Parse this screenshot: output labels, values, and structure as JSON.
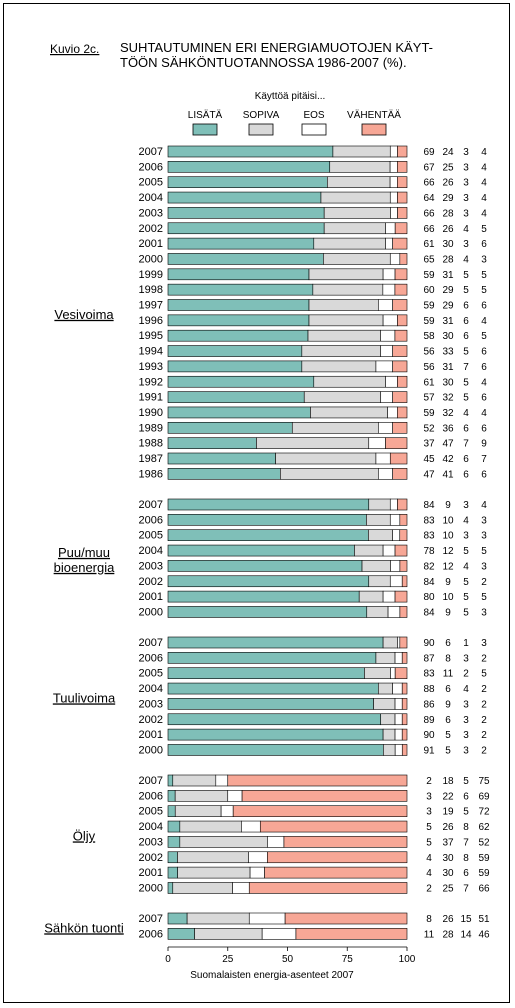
{
  "figure": {
    "label": "Kuvio 2c.",
    "title_line1": "SUHTAUTUMINEN ERI ENERGIAMUOTOJEN KÄYT-",
    "title_line2": "TÖÖN SÄHKÖNTUOTANNOSSA 1986-2007 (%).",
    "footer": "Suomalaisten energia-asenteet 2007"
  },
  "chart_data": {
    "type": "bar",
    "orientation": "horizontal",
    "stacked": true,
    "legend_title": "Käyttöä pitäisi...",
    "legend_position": "top",
    "xlim": [
      0,
      100
    ],
    "xticks": [
      0,
      25,
      50,
      75,
      100
    ],
    "series": [
      {
        "name": "LISÄTÄ",
        "color": "#7fbfb8"
      },
      {
        "name": "SOPIVA",
        "color": "#d9d9d9"
      },
      {
        "name": "EOS",
        "color": "#ffffff"
      },
      {
        "name": "VÄHENTÄÄ",
        "color": "#f7a796"
      }
    ],
    "groups": [
      {
        "name": "Vesivoima",
        "rows": [
          {
            "year": "2007",
            "values": [
              69,
              24,
              3,
              4
            ]
          },
          {
            "year": "2006",
            "values": [
              67,
              25,
              3,
              4
            ]
          },
          {
            "year": "2005",
            "values": [
              66,
              26,
              3,
              4
            ]
          },
          {
            "year": "2004",
            "values": [
              64,
              29,
              3,
              4
            ]
          },
          {
            "year": "2003",
            "values": [
              66,
              28,
              3,
              4
            ]
          },
          {
            "year": "2002",
            "values": [
              66,
              26,
              4,
              5
            ]
          },
          {
            "year": "2001",
            "values": [
              61,
              30,
              3,
              6
            ]
          },
          {
            "year": "2000",
            "values": [
              65,
              28,
              4,
              3
            ]
          },
          {
            "year": "1999",
            "values": [
              59,
              31,
              5,
              5
            ]
          },
          {
            "year": "1998",
            "values": [
              60,
              29,
              5,
              5
            ]
          },
          {
            "year": "1997",
            "values": [
              59,
              29,
              6,
              6
            ]
          },
          {
            "year": "1996",
            "values": [
              59,
              31,
              6,
              4
            ]
          },
          {
            "year": "1995",
            "values": [
              58,
              30,
              6,
              5
            ]
          },
          {
            "year": "1994",
            "values": [
              56,
              33,
              5,
              6
            ]
          },
          {
            "year": "1993",
            "values": [
              56,
              31,
              7,
              6
            ]
          },
          {
            "year": "1992",
            "values": [
              61,
              30,
              5,
              4
            ]
          },
          {
            "year": "1991",
            "values": [
              57,
              32,
              5,
              6
            ]
          },
          {
            "year": "1990",
            "values": [
              59,
              32,
              4,
              4
            ]
          },
          {
            "year": "1989",
            "values": [
              52,
              36,
              6,
              6
            ]
          },
          {
            "year": "1988",
            "values": [
              37,
              47,
              7,
              9
            ]
          },
          {
            "year": "1987",
            "values": [
              45,
              42,
              6,
              7
            ]
          },
          {
            "year": "1986",
            "values": [
              47,
              41,
              6,
              6
            ]
          }
        ]
      },
      {
        "name": "Puu/muu bioenergia",
        "name_lines": [
          "Puu/muu",
          "bioenergia"
        ],
        "rows": [
          {
            "year": "2007",
            "values": [
              84,
              9,
              3,
              4
            ]
          },
          {
            "year": "2006",
            "values": [
              83,
              10,
              4,
              3
            ]
          },
          {
            "year": "2005",
            "values": [
              83,
              10,
              3,
              3
            ]
          },
          {
            "year": "2004",
            "values": [
              78,
              12,
              5,
              5
            ]
          },
          {
            "year": "2003",
            "values": [
              82,
              12,
              4,
              3
            ]
          },
          {
            "year": "2002",
            "values": [
              84,
              9,
              5,
              2
            ]
          },
          {
            "year": "2001",
            "values": [
              80,
              10,
              5,
              5
            ]
          },
          {
            "year": "2000",
            "values": [
              84,
              9,
              5,
              3
            ]
          }
        ]
      },
      {
        "name": "Tuulivoima",
        "rows": [
          {
            "year": "2007",
            "values": [
              90,
              6,
              1,
              3
            ]
          },
          {
            "year": "2006",
            "values": [
              87,
              8,
              3,
              2
            ]
          },
          {
            "year": "2005",
            "values": [
              83,
              11,
              2,
              5
            ]
          },
          {
            "year": "2004",
            "values": [
              88,
              6,
              4,
              2
            ]
          },
          {
            "year": "2003",
            "values": [
              86,
              9,
              3,
              2
            ]
          },
          {
            "year": "2002",
            "values": [
              89,
              6,
              3,
              2
            ]
          },
          {
            "year": "2001",
            "values": [
              90,
              5,
              3,
              2
            ]
          },
          {
            "year": "2000",
            "values": [
              91,
              5,
              3,
              2
            ]
          }
        ]
      },
      {
        "name": "Öljy",
        "rows": [
          {
            "year": "2007",
            "values": [
              2,
              18,
              5,
              75
            ]
          },
          {
            "year": "2006",
            "values": [
              3,
              22,
              6,
              69
            ]
          },
          {
            "year": "2005",
            "values": [
              3,
              19,
              5,
              72
            ]
          },
          {
            "year": "2004",
            "values": [
              5,
              26,
              8,
              62
            ]
          },
          {
            "year": "2003",
            "values": [
              5,
              37,
              7,
              52
            ]
          },
          {
            "year": "2002",
            "values": [
              4,
              30,
              8,
              59
            ]
          },
          {
            "year": "2001",
            "values": [
              4,
              30,
              6,
              59
            ]
          },
          {
            "year": "2000",
            "values": [
              2,
              25,
              7,
              66
            ]
          }
        ]
      },
      {
        "name": "Sähkön tuonti",
        "rows": [
          {
            "year": "2007",
            "values": [
              8,
              26,
              15,
              51
            ]
          },
          {
            "year": "2006",
            "values": [
              11,
              28,
              14,
              46
            ]
          }
        ]
      }
    ]
  }
}
